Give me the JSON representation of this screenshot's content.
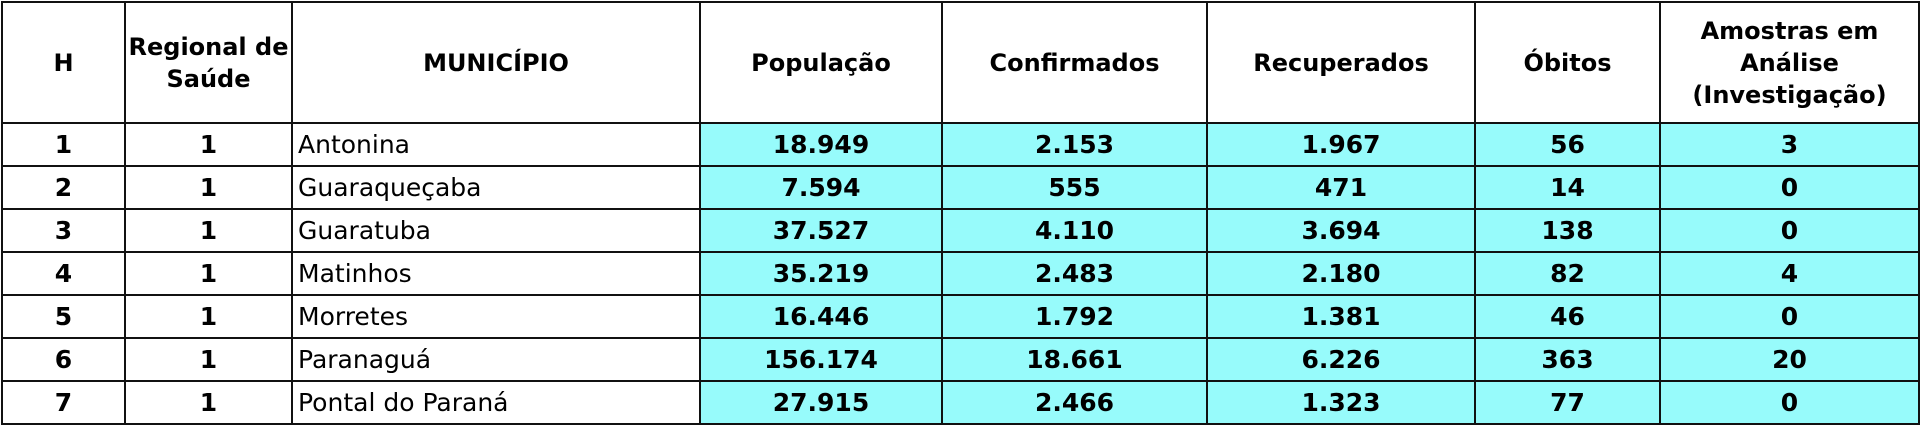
{
  "table": {
    "headers": [
      "H",
      "Regional de Saúde",
      "MUNICÍPIO",
      "População",
      "Confirmados",
      "Recuperados",
      "Óbitos",
      "Amostras em Análise (Investigação)"
    ],
    "rows": [
      [
        "1",
        "1",
        "Antonina",
        "18.949",
        "2.153",
        "1.967",
        "56",
        "3"
      ],
      [
        "2",
        "1",
        "Guaraqueçaba",
        "7.594",
        "555",
        "471",
        "14",
        "0"
      ],
      [
        "3",
        "1",
        "Guaratuba",
        "37.527",
        "4.110",
        "3.694",
        "138",
        "0"
      ],
      [
        "4",
        "1",
        "Matinhos",
        "35.219",
        "2.483",
        "2.180",
        "82",
        "4"
      ],
      [
        "5",
        "1",
        "Morretes",
        "16.446",
        "1.792",
        "1.381",
        "46",
        "0"
      ],
      [
        "6",
        "1",
        "Paranaguá",
        "156.174",
        "18.661",
        "6.226",
        "363",
        "20"
      ],
      [
        "7",
        "1",
        "Pontal do Paraná",
        "27.915",
        "2.466",
        "1.323",
        "77",
        "0"
      ]
    ]
  },
  "colors": {
    "cell_highlight": "#97fbfb",
    "border": "#111111"
  }
}
